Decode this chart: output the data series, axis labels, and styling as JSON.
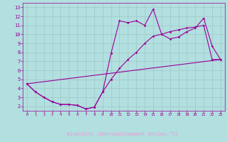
{
  "xlabel": "Windchill (Refroidissement éolien,°C)",
  "bg_color": "#b2dfdf",
  "line_color": "#990099",
  "grid_color": "#a0c8c8",
  "band_color": "#7700aa",
  "line1_x": [
    0,
    1,
    2,
    3,
    4,
    5,
    6,
    7,
    8,
    9,
    10,
    11,
    12,
    13,
    14,
    15,
    16,
    17,
    18,
    19,
    20,
    21,
    22,
    23
  ],
  "line1_y": [
    4.5,
    3.6,
    3.0,
    2.5,
    2.2,
    2.2,
    2.1,
    1.7,
    1.9,
    3.6,
    7.9,
    11.5,
    11.3,
    11.5,
    11.0,
    12.8,
    10.0,
    9.5,
    9.7,
    10.3,
    10.7,
    11.8,
    8.7,
    7.2
  ],
  "line2_x": [
    0,
    1,
    2,
    3,
    4,
    5,
    6,
    7,
    8,
    9,
    10,
    11,
    12,
    13,
    14,
    15,
    16,
    17,
    18,
    19,
    20,
    21,
    22,
    23
  ],
  "line2_y": [
    4.5,
    3.6,
    3.0,
    2.5,
    2.2,
    2.2,
    2.1,
    1.7,
    1.9,
    3.6,
    5.0,
    6.2,
    7.2,
    8.0,
    9.0,
    9.8,
    10.0,
    10.3,
    10.5,
    10.7,
    10.8,
    11.0,
    7.2,
    7.2
  ],
  "line3_x": [
    0,
    23
  ],
  "line3_y": [
    4.5,
    7.2
  ],
  "xlim": [
    -0.5,
    23.5
  ],
  "ylim": [
    1.5,
    13.5
  ],
  "yticks": [
    2,
    3,
    4,
    5,
    6,
    7,
    8,
    9,
    10,
    11,
    12,
    13
  ],
  "xticks": [
    0,
    1,
    2,
    3,
    4,
    5,
    6,
    7,
    8,
    9,
    10,
    11,
    12,
    13,
    14,
    15,
    16,
    17,
    18,
    19,
    20,
    21,
    22,
    23
  ],
  "xtick_labels": [
    "0",
    "1",
    "2",
    "3",
    "4",
    "5",
    "6",
    "7",
    "8",
    "9",
    "10",
    "11",
    "12",
    "13",
    "14",
    "15",
    "16",
    "17",
    "18",
    "19",
    "20",
    "21",
    "22",
    "23"
  ]
}
